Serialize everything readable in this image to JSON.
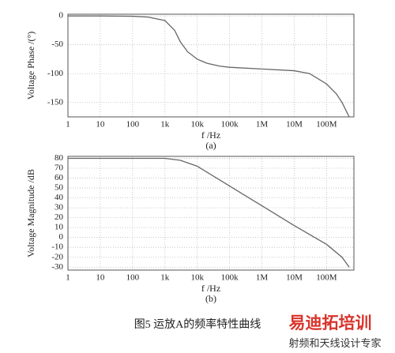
{
  "chart_data": [
    {
      "type": "line",
      "y_label": "Voltage Phase /(°)",
      "x_label": "f /Hz",
      "sublabel": "(a)",
      "log_x": true,
      "grid": true,
      "color": "#666666",
      "xlim": [
        1,
        700000000
      ],
      "ylim": [
        -175,
        3
      ],
      "xticks": [
        1,
        10,
        100,
        {
          "value": 1000,
          "label": "1k"
        },
        {
          "value": 10000,
          "label": "10k"
        },
        {
          "value": 100000,
          "label": "100k"
        },
        {
          "value": 1000000,
          "label": "1M"
        },
        {
          "value": 10000000,
          "label": "10M"
        },
        {
          "value": 100000000,
          "label": "100M"
        }
      ],
      "yticks": [
        0,
        -50,
        -100,
        -150
      ],
      "x": [
        1,
        10,
        100,
        300,
        1000,
        2000,
        3000,
        5000,
        10000,
        20000,
        50000,
        100000,
        1000000,
        10000000,
        30000000,
        100000000,
        200000000,
        300000000,
        500000000
      ],
      "values": [
        0,
        0,
        -0.5,
        -2,
        -8,
        -25,
        -45,
        -62,
        -75,
        -82,
        -87,
        -89,
        -92,
        -95,
        -100,
        -118,
        -135,
        -150,
        -175
      ]
    },
    {
      "type": "line",
      "y_label": "Voltage Magnitude /dB",
      "x_label": "f /Hz",
      "sublabel": "(b)",
      "log_x": true,
      "grid": true,
      "color": "#666666",
      "xlim": [
        1,
        700000000
      ],
      "ylim": [
        -33,
        82
      ],
      "xticks": [
        1,
        10,
        100,
        {
          "value": 1000,
          "label": "1k"
        },
        {
          "value": 10000,
          "label": "10k"
        },
        {
          "value": 100000,
          "label": "100k"
        },
        {
          "value": 1000000,
          "label": "1M"
        },
        {
          "value": 10000000,
          "label": "10M"
        },
        {
          "value": 100000000,
          "label": "100M"
        }
      ],
      "yticks": [
        80,
        70,
        60,
        50,
        40,
        30,
        20,
        10,
        0,
        -10,
        -20,
        -30
      ],
      "x": [
        1,
        100,
        1000,
        3000,
        10000,
        100000,
        1000000,
        10000000,
        100000000,
        300000000,
        500000000
      ],
      "values": [
        80,
        80,
        80,
        78,
        72,
        52,
        32,
        12,
        -7,
        -20,
        -30
      ]
    }
  ],
  "caption": "图5  运放A的频率特性曲线",
  "watermark": {
    "brand": "易迪拓培训",
    "slogan": "射频和天线设计专家"
  }
}
